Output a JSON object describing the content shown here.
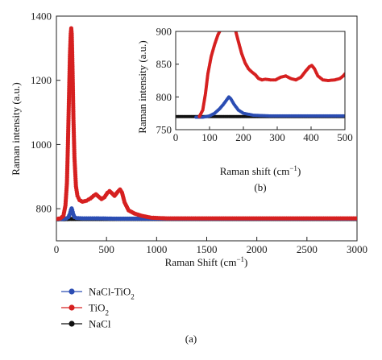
{
  "figure_label": "(a)",
  "chart_data": [
    {
      "id": "main",
      "type": "line",
      "xlabel": "Raman Shift (cm",
      "xlabel_sup": "−1",
      "xlabel_suffix": ")",
      "ylabel": "Raman intensity (a.u.)",
      "xlim": [
        0,
        3000
      ],
      "ylim": [
        700,
        1400
      ],
      "xticks": [
        0,
        500,
        1000,
        1500,
        2000,
        2500,
        3000
      ],
      "yticks": [
        800,
        1000,
        1200,
        1400
      ],
      "legend": {
        "position": "below"
      },
      "series": [
        {
          "name": "NaCl-TiO",
          "name_sub": "2",
          "color": "#2b4db3",
          "points": [
            [
              0,
              768
            ],
            [
              60,
              768
            ],
            [
              100,
              770
            ],
            [
              120,
              774
            ],
            [
              135,
              784
            ],
            [
              145,
              796
            ],
            [
              152,
              801
            ],
            [
              158,
              796
            ],
            [
              168,
              783
            ],
            [
              180,
              774
            ],
            [
              200,
              771
            ],
            [
              260,
              770
            ],
            [
              400,
              770
            ],
            [
              600,
              769
            ],
            [
              800,
              769
            ],
            [
              1000,
              769
            ],
            [
              1500,
              769
            ],
            [
              2000,
              769
            ],
            [
              2500,
              769
            ],
            [
              3000,
              769
            ]
          ]
        },
        {
          "name": "TiO",
          "name_sub": "2",
          "color": "#d62020",
          "points": [
            [
              0,
              768
            ],
            [
              40,
              770
            ],
            [
              70,
              778
            ],
            [
              90,
              810
            ],
            [
              105,
              880
            ],
            [
              115,
              1000
            ],
            [
              125,
              1140
            ],
            [
              135,
              1280
            ],
            [
              143,
              1345
            ],
            [
              148,
              1362
            ],
            [
              153,
              1345
            ],
            [
              160,
              1250
            ],
            [
              170,
              1080
            ],
            [
              180,
              960
            ],
            [
              195,
              870
            ],
            [
              210,
              840
            ],
            [
              230,
              827
            ],
            [
              260,
              822
            ],
            [
              300,
              825
            ],
            [
              340,
              832
            ],
            [
              370,
              840
            ],
            [
              395,
              845
            ],
            [
              420,
              838
            ],
            [
              450,
              830
            ],
            [
              480,
              836
            ],
            [
              510,
              850
            ],
            [
              530,
              855
            ],
            [
              555,
              848
            ],
            [
              580,
              840
            ],
            [
              610,
              852
            ],
            [
              635,
              860
            ],
            [
              655,
              850
            ],
            [
              680,
              820
            ],
            [
              720,
              795
            ],
            [
              780,
              785
            ],
            [
              850,
              778
            ],
            [
              950,
              772
            ],
            [
              1100,
              770
            ],
            [
              1500,
              770
            ],
            [
              2000,
              770
            ],
            [
              2500,
              770
            ],
            [
              3000,
              770
            ]
          ]
        },
        {
          "name": "NaCl",
          "name_sub": "",
          "color": "#111111",
          "points": [
            [
              0,
              767
            ],
            [
              150,
              768
            ],
            [
              300,
              768
            ],
            [
              600,
              768
            ],
            [
              1000,
              768
            ],
            [
              1500,
              768
            ],
            [
              2000,
              768
            ],
            [
              2500,
              768
            ],
            [
              3000,
              768
            ]
          ]
        }
      ]
    },
    {
      "id": "inset",
      "type": "line",
      "panel_label": "(b)",
      "xlabel": "Raman shift (cm",
      "xlabel_sup": "−1",
      "xlabel_suffix": ")",
      "ylabel": "Raman intensity (a.u.)",
      "xlim": [
        0,
        500
      ],
      "ylim": [
        750,
        900
      ],
      "xticks": [
        0,
        100,
        200,
        300,
        400,
        500
      ],
      "yticks": [
        750,
        800,
        850,
        900
      ],
      "series": [
        {
          "name": "NaCl-TiO2",
          "color": "#2b4db3",
          "points": [
            [
              60,
              769
            ],
            [
              80,
              769
            ],
            [
              100,
              771
            ],
            [
              115,
              775
            ],
            [
              130,
              782
            ],
            [
              140,
              788
            ],
            [
              150,
              795
            ],
            [
              157,
              800
            ],
            [
              163,
              797
            ],
            [
              172,
              789
            ],
            [
              185,
              780
            ],
            [
              200,
              775
            ],
            [
              230,
              772
            ],
            [
              280,
              771
            ],
            [
              350,
              771
            ],
            [
              420,
              771
            ],
            [
              500,
              771
            ]
          ]
        },
        {
          "name": "TiO2",
          "color": "#d62020",
          "points": [
            [
              70,
              770
            ],
            [
              80,
              780
            ],
            [
              88,
              805
            ],
            [
              95,
              835
            ],
            [
              105,
              862
            ],
            [
              115,
              880
            ],
            [
              125,
              895
            ],
            [
              135,
              905
            ],
            [
              145,
              915
            ],
            [
              165,
              915
            ],
            [
              175,
              905
            ],
            [
              185,
              885
            ],
            [
              195,
              866
            ],
            [
              205,
              852
            ],
            [
              215,
              843
            ],
            [
              225,
              838
            ],
            [
              235,
              834
            ],
            [
              245,
              828
            ],
            [
              255,
              826
            ],
            [
              265,
              827
            ],
            [
              280,
              826
            ],
            [
              295,
              826
            ],
            [
              310,
              830
            ],
            [
              325,
              832
            ],
            [
              340,
              828
            ],
            [
              355,
              826
            ],
            [
              370,
              830
            ],
            [
              385,
              840
            ],
            [
              395,
              846
            ],
            [
              402,
              848
            ],
            [
              410,
              843
            ],
            [
              420,
              832
            ],
            [
              435,
              826
            ],
            [
              450,
              825
            ],
            [
              470,
              826
            ],
            [
              485,
              828
            ],
            [
              495,
              832
            ],
            [
              500,
              835
            ]
          ]
        },
        {
          "name": "NaCl",
          "color": "#111111",
          "points": [
            [
              0,
              770
            ],
            [
              50,
              770
            ],
            [
              100,
              770
            ],
            [
              150,
              770
            ],
            [
              200,
              770
            ],
            [
              250,
              770
            ],
            [
              300,
              770
            ],
            [
              350,
              770
            ],
            [
              400,
              770
            ],
            [
              450,
              770
            ],
            [
              500,
              770
            ]
          ]
        }
      ]
    }
  ]
}
